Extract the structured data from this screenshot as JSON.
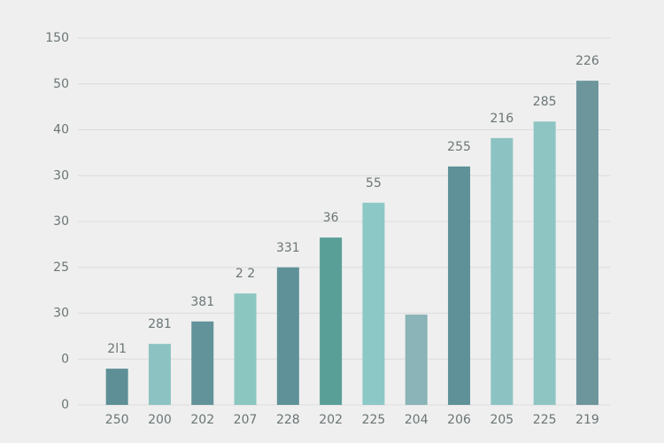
{
  "chart_data": {
    "type": "bar",
    "categories": [
      "250",
      "200",
      "202",
      "207",
      "228",
      "202",
      "225",
      "204",
      "206",
      "205",
      "225",
      "219"
    ],
    "values": [
      0.79,
      1.33,
      1.82,
      2.43,
      3.0,
      3.65,
      4.41,
      1.97,
      5.2,
      5.82,
      6.18,
      7.07
    ],
    "bar_labels": [
      "2l1",
      "281",
      "381",
      "2 2",
      "331",
      "36",
      "55",
      null,
      "255",
      "216",
      "285",
      "226"
    ],
    "colors": [
      "#5e8f96",
      "#8cc3c2",
      "#62929a",
      "#8cc6c1",
      "#5f9298",
      "#5a9e98",
      "#8cc8c6",
      "#8ab4b7",
      "#5f9199",
      "#8cc3c2",
      "#8ec5c3",
      "#6c969c"
    ],
    "ylim": [
      0,
      8
    ],
    "yticks": [
      {
        "value": 0,
        "label": "0"
      },
      {
        "value": 1,
        "label": "0"
      },
      {
        "value": 2,
        "label": "30"
      },
      {
        "value": 3,
        "label": "25"
      },
      {
        "value": 4,
        "label": "30"
      },
      {
        "value": 5,
        "label": "30"
      },
      {
        "value": 6,
        "label": "40"
      },
      {
        "value": 7,
        "label": "50"
      },
      {
        "value": 8,
        "label": "150"
      }
    ],
    "grid": true
  }
}
